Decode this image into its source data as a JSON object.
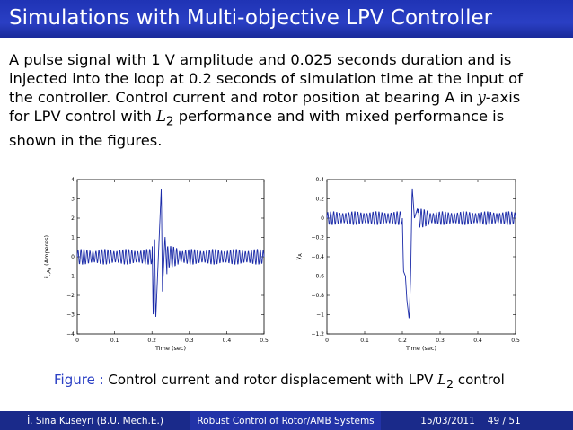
{
  "slide": {
    "title": "Simulations with Multi-objective LPV Controller",
    "paragraph": {
      "line1": "A pulse signal with 1 V amplitude and 0.025 seconds duration and is",
      "line2": "injected into the loop at 0.2 seconds of simulation time at the input of",
      "line3a": "the controller. Control current and rotor position at bearing A in ",
      "line3b": "y",
      "line3c": "-axis",
      "line4a": "for LPV control with ",
      "line4b": "L",
      "line4c": "2",
      "line4d": " performance and with mixed performance is",
      "line5": "shown in the figures."
    },
    "caption": {
      "label": "Figure :",
      "text": " Control current and rotor displacement with LPV ",
      "math": "L",
      "sub": "2",
      "tail": " control"
    },
    "footer": {
      "author": "İ. Sina Kuseyri  (B.U. Mech.E.)",
      "talk_title": "Robust Control of Rotor/AMB Systems",
      "date": "15/03/2011",
      "page": "49 / 51"
    }
  },
  "chart_data": [
    {
      "type": "line",
      "title": "",
      "xlabel": "Time (sec)",
      "ylabel": "i_c,Ay (Amperes)",
      "xlim": [
        0,
        0.5
      ],
      "ylim": [
        -4,
        4
      ],
      "xticks": [
        0,
        0.1,
        0.2,
        0.3,
        0.4,
        0.5
      ],
      "xtick_labels": [
        "0",
        "0.1",
        "0.2",
        "0.3",
        "0.4",
        "0.5"
      ],
      "yticks": [
        -4,
        -3,
        -2,
        -1,
        0,
        1,
        2,
        3,
        4
      ],
      "ytick_labels": [
        "−4",
        "−3",
        "−2",
        "−1",
        "0",
        "1",
        "2",
        "3",
        "4"
      ],
      "grid": false,
      "series": [
        {
          "color": "#1a2aa8",
          "baseline_amplitude": 0.4,
          "oscillation_period": 0.008,
          "events": [
            {
              "x": 0.2,
              "y": 1.9
            },
            {
              "x": 0.203,
              "y": -3.2
            },
            {
              "x": 0.207,
              "y": 1.2
            },
            {
              "x": 0.21,
              "y": -3.3
            },
            {
              "x": 0.225,
              "y": 3.6
            },
            {
              "x": 0.228,
              "y": -1.8
            },
            {
              "x": 0.235,
              "y": 1.1
            },
            {
              "x": 0.24,
              "y": -0.9
            }
          ]
        }
      ]
    },
    {
      "type": "line",
      "title": "",
      "xlabel": "Time (sec)",
      "ylabel": "y_A",
      "xlim": [
        0,
        0.5
      ],
      "ylim": [
        -1.2,
        0.4
      ],
      "xticks": [
        0,
        0.1,
        0.2,
        0.3,
        0.4,
        0.5
      ],
      "xtick_labels": [
        "0",
        "0.1",
        "0.2",
        "0.3",
        "0.4",
        "0.5"
      ],
      "yticks": [
        -1.2,
        -1,
        -0.8,
        -0.6,
        -0.4,
        -0.2,
        0,
        0.2,
        0.4
      ],
      "ytick_labels": [
        "−1.2",
        "−1",
        "−0.8",
        "−0.6",
        "−0.4",
        "−0.2",
        "0",
        "0.2",
        "0.4"
      ],
      "grid": false,
      "series": [
        {
          "color": "#1a2aa8",
          "baseline_amplitude": 0.07,
          "oscillation_period": 0.008,
          "events": [
            {
              "x": 0.2,
              "y": -0.02
            },
            {
              "x": 0.203,
              "y": -0.55
            },
            {
              "x": 0.208,
              "y": -0.6
            },
            {
              "x": 0.212,
              "y": -0.85
            },
            {
              "x": 0.218,
              "y": -1.05
            },
            {
              "x": 0.222,
              "y": -0.6
            },
            {
              "x": 0.226,
              "y": 0.33
            },
            {
              "x": 0.232,
              "y": 0.0
            },
            {
              "x": 0.24,
              "y": 0.1
            }
          ]
        }
      ]
    }
  ]
}
